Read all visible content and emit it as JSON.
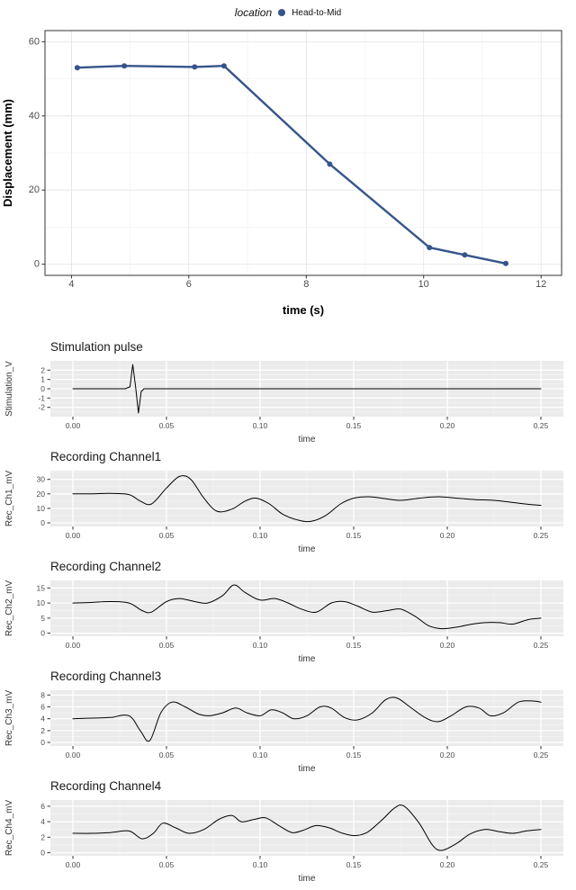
{
  "figure": {
    "background": "#ffffff"
  },
  "legend": {
    "title": "location",
    "entry": "Head-to-Mid"
  },
  "chart_data": [
    {
      "id": "displacement",
      "type": "line",
      "title": "",
      "legend_title": "location",
      "legend_entries": [
        "Head-to-Mid"
      ],
      "legend_position": "top",
      "xlabel": "time (s)",
      "ylabel": "Displacement (mm)",
      "xlim": [
        3.55,
        12.35
      ],
      "ylim": [
        -3,
        63
      ],
      "xticks": [
        4,
        6,
        8,
        10,
        12
      ],
      "xtick_labels": [
        "4",
        "6",
        "8",
        "10",
        "12"
      ],
      "yticks": [
        0,
        20,
        40,
        60
      ],
      "ytick_labels": [
        "0",
        "20",
        "40",
        "60"
      ],
      "panel_bg": "#ffffff",
      "grid_major": "#e3e3e3",
      "grid_minor": "#f0f0f0",
      "panel_border": "#333333",
      "color": "#35558a",
      "line_width": 2.4,
      "marker": true,
      "marker_radius": 3,
      "smooth": false,
      "x": [
        4.1,
        4.9,
        6.1,
        6.6,
        8.4,
        10.1,
        10.7,
        11.4
      ],
      "y": [
        53,
        53.5,
        53.2,
        53.5,
        27,
        4.5,
        2.5,
        0.2
      ]
    },
    {
      "id": "stimulation",
      "type": "line",
      "title": "Stimulation pulse",
      "xlabel": "time",
      "ylabel": "Stimulation_V",
      "xlim": [
        -0.012,
        0.262
      ],
      "ylim": [
        -3,
        3
      ],
      "xticks": [
        0,
        0.05,
        0.1,
        0.15,
        0.2,
        0.25
      ],
      "xtick_labels": [
        "0.00",
        "0.05",
        "0.10",
        "0.15",
        "0.20",
        "0.25"
      ],
      "yticks": [
        -2,
        -1,
        0,
        1,
        2
      ],
      "ytick_labels": [
        "-2",
        "-1",
        "0",
        "1",
        "2"
      ],
      "panel_bg": "#ebebeb",
      "grid_major": "#ffffff",
      "grid_minor": "#f6f6f6",
      "color": "#000000",
      "line_width": 1,
      "marker": false,
      "smooth": false,
      "x": [
        0,
        0.028,
        0.0305,
        0.032,
        0.0335,
        0.035,
        0.0365,
        0.038,
        0.04,
        0.06,
        0.1,
        0.15,
        0.2,
        0.25
      ],
      "y": [
        0,
        0,
        0.2,
        2.6,
        0.2,
        -2.6,
        -0.3,
        0,
        0,
        0,
        0,
        0,
        0,
        0
      ]
    },
    {
      "id": "channel1",
      "type": "line",
      "title": "Recording Channel1",
      "xlabel": "time",
      "ylabel": "Rec_Ch1_mV",
      "xlim": [
        -0.012,
        0.262
      ],
      "ylim": [
        -2.5,
        36
      ],
      "xticks": [
        0,
        0.05,
        0.1,
        0.15,
        0.2,
        0.25
      ],
      "xtick_labels": [
        "0.00",
        "0.05",
        "0.10",
        "0.15",
        "0.20",
        "0.25"
      ],
      "yticks": [
        0,
        10,
        20,
        30
      ],
      "ytick_labels": [
        "0",
        "10",
        "20",
        "30"
      ],
      "panel_bg": "#ebebeb",
      "grid_major": "#ffffff",
      "grid_minor": "#f6f6f6",
      "color": "#000000",
      "line_width": 1,
      "marker": false,
      "smooth": true,
      "x": [
        0,
        0.01,
        0.02,
        0.03,
        0.036,
        0.042,
        0.05,
        0.057,
        0.063,
        0.07,
        0.077,
        0.085,
        0.092,
        0.098,
        0.105,
        0.112,
        0.12,
        0.127,
        0.135,
        0.143,
        0.15,
        0.158,
        0.165,
        0.175,
        0.185,
        0.195,
        0.205,
        0.215,
        0.225,
        0.235,
        0.245,
        0.25
      ],
      "y": [
        20,
        20,
        20.3,
        19.5,
        15,
        13,
        24,
        32,
        30,
        17,
        8,
        9.5,
        15,
        17,
        13,
        6,
        2,
        1,
        5,
        13,
        17,
        18,
        17,
        15.5,
        17,
        18,
        17,
        16,
        15.5,
        14,
        12.5,
        12
      ]
    },
    {
      "id": "channel2",
      "type": "line",
      "title": "Recording Channel2",
      "xlabel": "time",
      "ylabel": "Rec_Ch2_mV",
      "xlim": [
        -0.012,
        0.262
      ],
      "ylim": [
        -1,
        17.5
      ],
      "xticks": [
        0,
        0.05,
        0.1,
        0.15,
        0.2,
        0.25
      ],
      "xtick_labels": [
        "0.00",
        "0.05",
        "0.10",
        "0.15",
        "0.20",
        "0.25"
      ],
      "yticks": [
        0,
        5,
        10,
        15
      ],
      "ytick_labels": [
        "0",
        "5",
        "10",
        "15"
      ],
      "panel_bg": "#ebebeb",
      "grid_major": "#ffffff",
      "grid_minor": "#f6f6f6",
      "color": "#000000",
      "line_width": 1,
      "marker": false,
      "smooth": true,
      "x": [
        0,
        0.01,
        0.02,
        0.03,
        0.037,
        0.042,
        0.05,
        0.057,
        0.065,
        0.072,
        0.08,
        0.086,
        0.092,
        0.1,
        0.108,
        0.115,
        0.122,
        0.13,
        0.138,
        0.145,
        0.152,
        0.16,
        0.168,
        0.175,
        0.183,
        0.19,
        0.197,
        0.205,
        0.213,
        0.22,
        0.228,
        0.235,
        0.243,
        0.25
      ],
      "y": [
        10,
        10.2,
        10.5,
        10,
        7.5,
        7,
        10.5,
        11.5,
        10.5,
        10,
        12.5,
        16,
        13.5,
        11,
        11.5,
        10,
        8,
        7,
        10,
        10.5,
        9,
        7,
        7.5,
        8,
        5.5,
        2.5,
        1.5,
        2,
        3,
        3.5,
        3.5,
        3,
        4.5,
        5
      ]
    },
    {
      "id": "channel3",
      "type": "line",
      "title": "Recording Channel3",
      "xlabel": "time",
      "ylabel": "Rec_Ch3_mV",
      "xlim": [
        -0.012,
        0.262
      ],
      "ylim": [
        -0.6,
        8.8
      ],
      "xticks": [
        0,
        0.05,
        0.1,
        0.15,
        0.2,
        0.25
      ],
      "xtick_labels": [
        "0.00",
        "0.05",
        "0.10",
        "0.15",
        "0.20",
        "0.25"
      ],
      "yticks": [
        0,
        2,
        4,
        6,
        8
      ],
      "ytick_labels": [
        "0",
        "2",
        "4",
        "6",
        "8"
      ],
      "panel_bg": "#ebebeb",
      "grid_major": "#ffffff",
      "grid_minor": "#f6f6f6",
      "color": "#000000",
      "line_width": 1,
      "marker": false,
      "smooth": true,
      "x": [
        0,
        0.01,
        0.02,
        0.03,
        0.036,
        0.041,
        0.047,
        0.053,
        0.06,
        0.067,
        0.073,
        0.08,
        0.087,
        0.093,
        0.1,
        0.106,
        0.112,
        0.118,
        0.125,
        0.132,
        0.138,
        0.145,
        0.152,
        0.16,
        0.167,
        0.173,
        0.18,
        0.188,
        0.195,
        0.202,
        0.21,
        0.217,
        0.223,
        0.23,
        0.238,
        0.245,
        0.25
      ],
      "y": [
        4,
        4.1,
        4.2,
        4.5,
        2,
        0.3,
        5,
        6.8,
        6,
        4.8,
        4.5,
        5,
        5.8,
        5,
        4.5,
        5.5,
        5,
        4,
        4.5,
        6,
        5.8,
        4.2,
        3.8,
        5,
        7.2,
        7.5,
        6,
        4.2,
        3.5,
        4.5,
        6,
        5.8,
        4.5,
        5,
        6.8,
        7,
        6.8
      ]
    },
    {
      "id": "channel4",
      "type": "line",
      "title": "Recording Channel4",
      "xlabel": "time",
      "ylabel": "Rec_Ch4_mV",
      "xlim": [
        -0.012,
        0.262
      ],
      "ylim": [
        -0.4,
        6.8
      ],
      "xticks": [
        0,
        0.05,
        0.1,
        0.15,
        0.2,
        0.25
      ],
      "xtick_labels": [
        "0.00",
        "0.05",
        "0.10",
        "0.15",
        "0.20",
        "0.25"
      ],
      "yticks": [
        0,
        2,
        4,
        6
      ],
      "ytick_labels": [
        "0",
        "2",
        "4",
        "6"
      ],
      "panel_bg": "#ebebeb",
      "grid_major": "#ffffff",
      "grid_minor": "#f6f6f6",
      "color": "#000000",
      "line_width": 1,
      "marker": false,
      "smooth": true,
      "x": [
        0,
        0.01,
        0.02,
        0.03,
        0.037,
        0.043,
        0.048,
        0.055,
        0.062,
        0.07,
        0.078,
        0.085,
        0.09,
        0.097,
        0.103,
        0.11,
        0.117,
        0.123,
        0.13,
        0.137,
        0.143,
        0.15,
        0.157,
        0.165,
        0.172,
        0.177,
        0.185,
        0.192,
        0.197,
        0.205,
        0.212,
        0.22,
        0.228,
        0.235,
        0.242,
        0.25
      ],
      "y": [
        2.5,
        2.5,
        2.6,
        2.8,
        1.8,
        2.5,
        3.8,
        3.2,
        2.5,
        3,
        4.3,
        4.8,
        4,
        4.3,
        4.5,
        3.5,
        2.6,
        2.9,
        3.5,
        3.2,
        2.6,
        2.2,
        2.6,
        4.2,
        5.8,
        6,
        3.8,
        1,
        0.3,
        1.2,
        2.4,
        3,
        2.7,
        2.5,
        2.8,
        3
      ]
    }
  ]
}
